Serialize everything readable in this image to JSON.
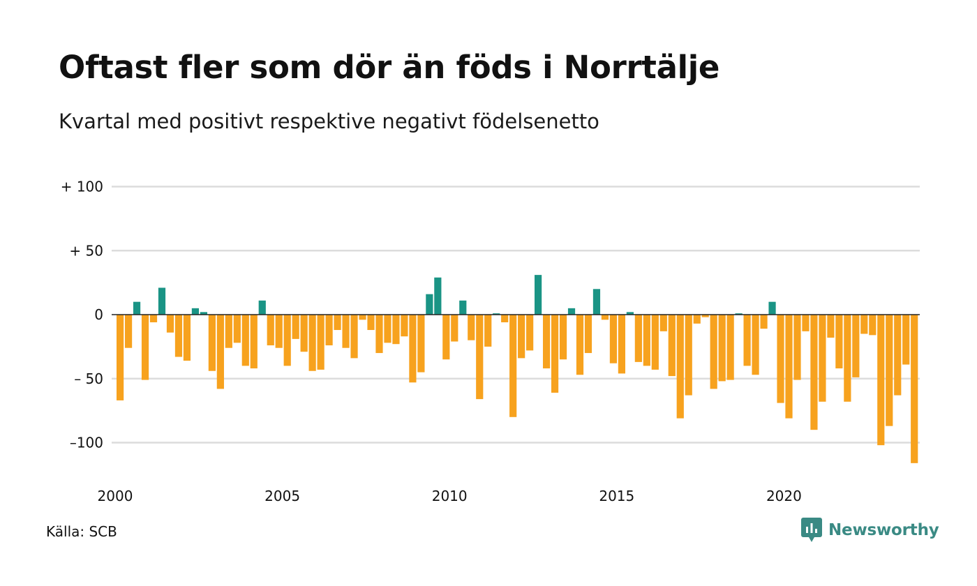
{
  "title": "Oftast fler som dör än föds i Norrtälje",
  "subtitle": "Kvartal med positivt respektive negativt födelsenetto",
  "source": "Källa: SCB",
  "brand": {
    "name": "Newsworthy",
    "icon": "newsworthy-logo-icon"
  },
  "colors": {
    "positive": "#1a9485",
    "negative": "#f7a21e",
    "grid": "#dcdcdc",
    "zero_line": "#222222"
  },
  "chart_data": {
    "type": "bar",
    "title": "Oftast fler som dör än föds i Norrtälje",
    "subtitle": "Kvartal med positivt respektive negativt födelsenetto",
    "xlabel": "",
    "ylabel": "",
    "ylim": [
      -120,
      100
    ],
    "yticks": [
      {
        "value": 100,
        "label": "+ 100"
      },
      {
        "value": 50,
        "label": "+  50"
      },
      {
        "value": 0,
        "label": "0"
      },
      {
        "value": -50,
        "label": "– 50"
      },
      {
        "value": -100,
        "label": "–100"
      }
    ],
    "xticks": [
      {
        "year": 2000,
        "label": "2000"
      },
      {
        "year": 2005,
        "label": "2005"
      },
      {
        "year": 2010,
        "label": "2010"
      },
      {
        "year": 2015,
        "label": "2015"
      },
      {
        "year": 2020,
        "label": "2020"
      }
    ],
    "grid": true,
    "legend": "none",
    "start": "2000 Q1",
    "period": "quarter",
    "values": [
      -67,
      -26,
      10,
      -51,
      -6,
      21,
      -14,
      -33,
      -36,
      5,
      2,
      -44,
      -58,
      -26,
      -22,
      -40,
      -42,
      11,
      -24,
      -26,
      -40,
      -19,
      -29,
      -44,
      -43,
      -24,
      -12,
      -26,
      -34,
      -4,
      -12,
      -30,
      -22,
      -23,
      -17,
      -53,
      -45,
      16,
      29,
      -35,
      -21,
      11,
      -20,
      -66,
      -25,
      1,
      -6,
      -80,
      -34,
      -28,
      31,
      -42,
      -61,
      -35,
      5,
      -47,
      -30,
      20,
      -4,
      -38,
      -46,
      2,
      -37,
      -40,
      -43,
      -13,
      -48,
      -81,
      -63,
      -7,
      -2,
      -58,
      -52,
      -51,
      1,
      -40,
      -47,
      -11,
      10,
      -69,
      -81,
      -51,
      -13,
      -90,
      -68,
      -18,
      -42,
      -68,
      -49,
      -15,
      -16,
      -102,
      -87,
      -63,
      -39,
      -116
    ]
  }
}
